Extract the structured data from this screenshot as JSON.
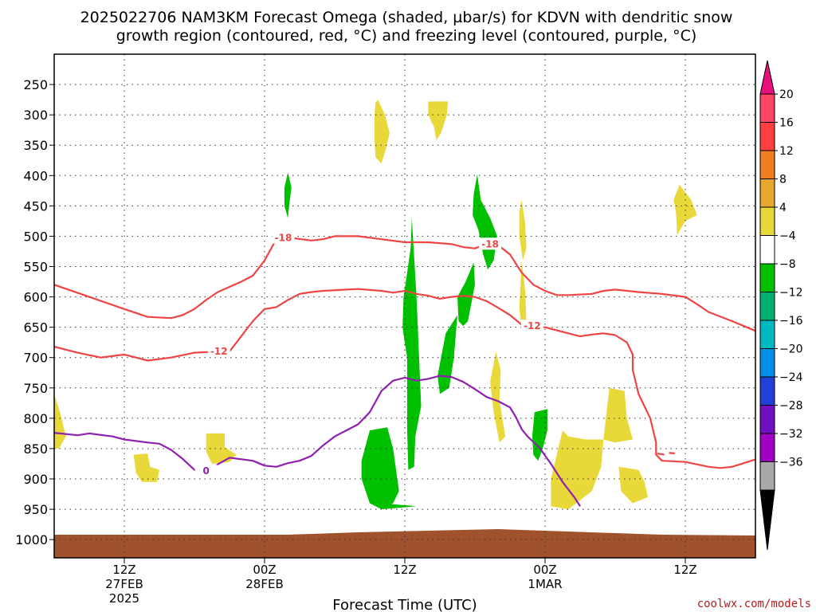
{
  "title_line1": "2025022706 NAM3KM Forecast Omega (shaded, µbar/s) for KDVN with dendritic snow",
  "title_line2": "growth region (contoured, red, °C) and freezing level (contoured, purple, °C)",
  "credit": "coolwx.com/models",
  "chart_data": {
    "type": "time-height cross section",
    "xlabel": "Forecast Time (UTC)",
    "x_ticks": [
      {
        "hour": 6,
        "l1": "12Z",
        "l2": "27FEB",
        "l3": "2025"
      },
      {
        "hour": 18,
        "l1": "00Z",
        "l2": "28FEB",
        "l3": ""
      },
      {
        "hour": 30,
        "l1": "12Z",
        "l2": "",
        "l3": ""
      },
      {
        "hour": 42,
        "l1": "00Z",
        "l2": "1MAR",
        "l3": ""
      },
      {
        "hour": 54,
        "l1": "12Z",
        "l2": "",
        "l3": ""
      }
    ],
    "xlim": [
      0,
      60
    ],
    "y_ticks": [
      250,
      300,
      350,
      400,
      450,
      500,
      550,
      600,
      650,
      700,
      750,
      800,
      850,
      900,
      950,
      1000
    ],
    "ylim": [
      200,
      1030
    ],
    "grid": true,
    "colorbar": {
      "labels": [
        "20",
        "16",
        "12",
        "8",
        "4",
        "−4",
        "−8",
        "−12",
        "−16",
        "−20",
        "−24",
        "−28",
        "−32",
        "−36"
      ],
      "colors": [
        "#ff4466",
        "#ff4040",
        "#f07f20",
        "#e8a830",
        "#e8d83a",
        "#ffffff",
        "#00c000",
        "#00b070",
        "#00b8c0",
        "#0090e8",
        "#2040d8",
        "#7010c0",
        "#a000c0",
        "#a8a8a8"
      ],
      "cap_top": "#e8107a",
      "cap_bottom": "#000000"
    },
    "terrain_color": "#a0522d",
    "isotherm_minus18": {
      "label": "-18",
      "color": "#ee4444",
      "points": [
        [
          0,
          580
        ],
        [
          3,
          600
        ],
        [
          6,
          620
        ],
        [
          8,
          633
        ],
        [
          10,
          635
        ],
        [
          11,
          630
        ],
        [
          12,
          620
        ],
        [
          13,
          605
        ],
        [
          14,
          592
        ],
        [
          16,
          575
        ],
        [
          17,
          565
        ],
        [
          18,
          540
        ],
        [
          19,
          505
        ],
        [
          20,
          502
        ],
        [
          22,
          507
        ],
        [
          23,
          505
        ],
        [
          24,
          500
        ],
        [
          26,
          500
        ],
        [
          28,
          505
        ],
        [
          30,
          510
        ],
        [
          32,
          510
        ],
        [
          34,
          513
        ],
        [
          35,
          518
        ],
        [
          36,
          520
        ],
        [
          37,
          513
        ],
        [
          38,
          515
        ],
        [
          39,
          530
        ],
        [
          40,
          560
        ],
        [
          41,
          580
        ],
        [
          42,
          590
        ],
        [
          43,
          597
        ],
        [
          44,
          597
        ],
        [
          46,
          595
        ],
        [
          47,
          590
        ],
        [
          48,
          588
        ],
        [
          50,
          592
        ],
        [
          52,
          595
        ],
        [
          54,
          600
        ],
        [
          55,
          612
        ],
        [
          56,
          625
        ],
        [
          58,
          640
        ],
        [
          60,
          656
        ]
      ]
    },
    "isotherm_minus12": {
      "label": "-12",
      "color": "#ee4444",
      "points": [
        [
          0,
          682
        ],
        [
          2,
          692
        ],
        [
          4,
          700
        ],
        [
          6,
          695
        ],
        [
          7,
          700
        ],
        [
          8,
          705
        ],
        [
          10,
          700
        ],
        [
          12,
          692
        ],
        [
          14,
          690
        ],
        [
          15,
          690
        ],
        [
          16,
          665
        ],
        [
          17,
          640
        ],
        [
          18,
          620
        ],
        [
          19,
          617
        ],
        [
          20,
          605
        ],
        [
          21,
          595
        ],
        [
          22,
          592
        ],
        [
          23,
          590
        ],
        [
          25,
          588
        ],
        [
          26,
          587
        ],
        [
          28,
          590
        ],
        [
          29,
          593
        ],
        [
          30,
          590
        ],
        [
          31,
          595
        ],
        [
          32,
          598
        ],
        [
          33,
          603
        ],
        [
          34,
          600
        ],
        [
          35,
          598
        ],
        [
          36,
          600
        ],
        [
          37,
          607
        ],
        [
          38,
          618
        ],
        [
          39,
          630
        ],
        [
          40,
          646
        ],
        [
          41,
          650
        ],
        [
          42,
          650
        ],
        [
          43,
          655
        ],
        [
          44,
          660
        ],
        [
          45,
          665
        ],
        [
          46,
          662
        ],
        [
          47,
          660
        ],
        [
          48,
          663
        ],
        [
          49,
          675
        ],
        [
          49.5,
          695
        ],
        [
          49.5,
          720
        ],
        [
          50,
          760
        ],
        [
          51,
          800
        ],
        [
          51.5,
          840
        ],
        [
          51.5,
          860
        ],
        [
          52,
          870
        ],
        [
          54,
          872
        ],
        [
          56,
          880
        ],
        [
          57,
          882
        ],
        [
          58,
          880
        ],
        [
          60,
          868
        ]
      ]
    },
    "freezing_level": {
      "label": "0",
      "color": "#9020b0",
      "points": [
        [
          0,
          824
        ],
        [
          2,
          828
        ],
        [
          3,
          825
        ],
        [
          5,
          830
        ],
        [
          6,
          835
        ],
        [
          8,
          840
        ],
        [
          9,
          842
        ],
        [
          10,
          852
        ],
        [
          11,
          867
        ],
        [
          12,
          885
        ],
        [
          13,
          887
        ],
        [
          14,
          876
        ],
        [
          15,
          865
        ],
        [
          17,
          870
        ],
        [
          18,
          878
        ],
        [
          19,
          880
        ],
        [
          20,
          874
        ],
        [
          21,
          870
        ],
        [
          22,
          862
        ],
        [
          23,
          845
        ],
        [
          24,
          830
        ],
        [
          25,
          820
        ],
        [
          26,
          810
        ],
        [
          27,
          790
        ],
        [
          28,
          755
        ],
        [
          29,
          738
        ],
        [
          30,
          733
        ],
        [
          31,
          738
        ],
        [
          32,
          735
        ],
        [
          33,
          730
        ],
        [
          34,
          732
        ],
        [
          35,
          740
        ],
        [
          36,
          752
        ],
        [
          37,
          765
        ],
        [
          38,
          772
        ],
        [
          39,
          782
        ],
        [
          39.5,
          798
        ],
        [
          40,
          818
        ],
        [
          40.5,
          830
        ],
        [
          41.5,
          848
        ],
        [
          42.5,
          875
        ],
        [
          43.5,
          905
        ],
        [
          44.5,
          930
        ],
        [
          45,
          945
        ]
      ]
    },
    "omega_regions": [
      {
        "sign": "positive",
        "color": "#e8d83a",
        "points": [
          [
            27.7,
            275
          ],
          [
            28.3,
            300
          ],
          [
            28.7,
            330
          ],
          [
            28.4,
            355
          ],
          [
            28.0,
            380
          ],
          [
            27.5,
            370
          ],
          [
            27.4,
            340
          ],
          [
            27.4,
            300
          ],
          [
            27.5,
            280
          ]
        ]
      },
      {
        "sign": "positive",
        "color": "#e8d83a",
        "points": [
          [
            32.0,
            278
          ],
          [
            33.7,
            278
          ],
          [
            33.6,
            300
          ],
          [
            33.1,
            330
          ],
          [
            32.7,
            342
          ],
          [
            32.5,
            320
          ],
          [
            32.0,
            300
          ]
        ]
      },
      {
        "sign": "negative",
        "color": "#00c000",
        "points": [
          [
            20.0,
            395
          ],
          [
            20.3,
            420
          ],
          [
            20.1,
            450
          ],
          [
            20.0,
            470
          ],
          [
            19.7,
            450
          ],
          [
            19.7,
            420
          ]
        ]
      },
      {
        "sign": "negative",
        "color": "#00c000",
        "points": [
          [
            36.2,
            398
          ],
          [
            36.5,
            440
          ],
          [
            37.3,
            470
          ],
          [
            37.9,
            500
          ],
          [
            37.6,
            540
          ],
          [
            37.1,
            555
          ],
          [
            36.7,
            530
          ],
          [
            36.3,
            490
          ],
          [
            35.8,
            465
          ],
          [
            35.9,
            430
          ]
        ]
      },
      {
        "sign": "negative",
        "color": "#00c000",
        "points": [
          [
            30.6,
            470
          ],
          [
            31.0,
            600
          ],
          [
            31.2,
            690
          ],
          [
            31.4,
            780
          ],
          [
            30.9,
            830
          ],
          [
            30.8,
            880
          ],
          [
            30.3,
            885
          ],
          [
            30.2,
            820
          ],
          [
            30.2,
            700
          ],
          [
            29.8,
            650
          ],
          [
            29.9,
            600
          ],
          [
            30.5,
            520
          ]
        ]
      },
      {
        "sign": "negative",
        "color": "#00c000",
        "points": [
          [
            35.9,
            543
          ],
          [
            36.0,
            580
          ],
          [
            35.4,
            640
          ],
          [
            35.0,
            648
          ],
          [
            34.6,
            640
          ],
          [
            34.5,
            600
          ],
          [
            35.2,
            575
          ]
        ]
      },
      {
        "sign": "negative",
        "color": "#00c000",
        "points": [
          [
            34.5,
            630
          ],
          [
            34.2,
            700
          ],
          [
            33.8,
            750
          ],
          [
            33.0,
            760
          ],
          [
            32.8,
            730
          ],
          [
            33.5,
            660
          ]
        ]
      },
      {
        "sign": "negative",
        "color": "#00c000",
        "points": [
          [
            27.0,
            820
          ],
          [
            28.5,
            815
          ],
          [
            29.0,
            850
          ],
          [
            29.5,
            920
          ],
          [
            29.0,
            940
          ],
          [
            28.0,
            950
          ],
          [
            27.0,
            940
          ],
          [
            26.3,
            900
          ],
          [
            26.3,
            870
          ]
        ]
      },
      {
        "sign": "negative",
        "color": "#00c000",
        "points": [
          [
            28.0,
            940
          ],
          [
            31.0,
            945
          ],
          [
            28.0,
            950
          ]
        ]
      },
      {
        "sign": "negative",
        "color": "#00c000",
        "points": [
          [
            41.1,
            790
          ],
          [
            42.2,
            785
          ],
          [
            42.2,
            820
          ],
          [
            41.8,
            850
          ],
          [
            41.4,
            870
          ],
          [
            41.0,
            860
          ],
          [
            40.9,
            830
          ]
        ]
      },
      {
        "sign": "positive",
        "color": "#e8d83a",
        "points": [
          [
            40.0,
            540
          ],
          [
            40.3,
            590
          ],
          [
            40.4,
            640
          ],
          [
            40.0,
            650
          ],
          [
            39.8,
            620
          ],
          [
            39.9,
            580
          ]
        ]
      },
      {
        "sign": "positive",
        "color": "#e8d83a",
        "points": [
          [
            37.8,
            690
          ],
          [
            38.2,
            720
          ],
          [
            38.1,
            770
          ],
          [
            38.6,
            830
          ],
          [
            38.1,
            840
          ],
          [
            37.6,
            790
          ],
          [
            37.3,
            740
          ]
        ]
      },
      {
        "sign": "positive",
        "color": "#e8d83a",
        "points": [
          [
            43.5,
            820
          ],
          [
            44.0,
            830
          ],
          [
            45.5,
            835
          ],
          [
            47.0,
            835
          ],
          [
            46.8,
            880
          ],
          [
            46.0,
            920
          ],
          [
            44.0,
            950
          ],
          [
            42.5,
            945
          ],
          [
            42.5,
            900
          ],
          [
            43.0,
            860
          ]
        ]
      },
      {
        "sign": "positive",
        "color": "#e8d83a",
        "points": [
          [
            47.5,
            750
          ],
          [
            48.8,
            755
          ],
          [
            49.0,
            800
          ],
          [
            49.5,
            835
          ],
          [
            48.0,
            840
          ],
          [
            47.0,
            835
          ],
          [
            47.2,
            800
          ]
        ]
      },
      {
        "sign": "positive",
        "color": "#e8d83a",
        "points": [
          [
            48.3,
            880
          ],
          [
            50.0,
            885
          ],
          [
            50.5,
            905
          ],
          [
            50.8,
            930
          ],
          [
            49.5,
            940
          ],
          [
            48.5,
            920
          ]
        ]
      },
      {
        "sign": "positive",
        "color": "#e8d83a",
        "points": [
          [
            53.5,
            415
          ],
          [
            54.5,
            440
          ],
          [
            55.0,
            465
          ],
          [
            54.0,
            475
          ],
          [
            53.3,
            498
          ],
          [
            53.2,
            460
          ],
          [
            53.0,
            440
          ]
        ]
      },
      {
        "sign": "positive",
        "color": "#e8d83a",
        "points": [
          [
            40.0,
            440
          ],
          [
            40.3,
            480
          ],
          [
            40.4,
            520
          ],
          [
            40.1,
            540
          ],
          [
            39.8,
            500
          ],
          [
            39.8,
            460
          ]
        ]
      },
      {
        "sign": "positive",
        "color": "#e8d83a",
        "points": [
          [
            0.0,
            760
          ],
          [
            0.5,
            790
          ],
          [
            1.0,
            830
          ],
          [
            0.4,
            850
          ],
          [
            0.0,
            850
          ]
        ]
      },
      {
        "sign": "positive",
        "color": "#e8d83a",
        "points": [
          [
            6.8,
            860
          ],
          [
            8.0,
            858
          ],
          [
            8.2,
            880
          ],
          [
            9.0,
            885
          ],
          [
            8.8,
            905
          ],
          [
            7.5,
            905
          ],
          [
            7.0,
            890
          ]
        ]
      },
      {
        "sign": "positive",
        "color": "#e8d83a",
        "points": [
          [
            13.0,
            825
          ],
          [
            14.6,
            825
          ],
          [
            14.6,
            848
          ],
          [
            15.6,
            860
          ],
          [
            15.0,
            872
          ],
          [
            13.5,
            875
          ],
          [
            13.0,
            855
          ]
        ]
      }
    ]
  }
}
